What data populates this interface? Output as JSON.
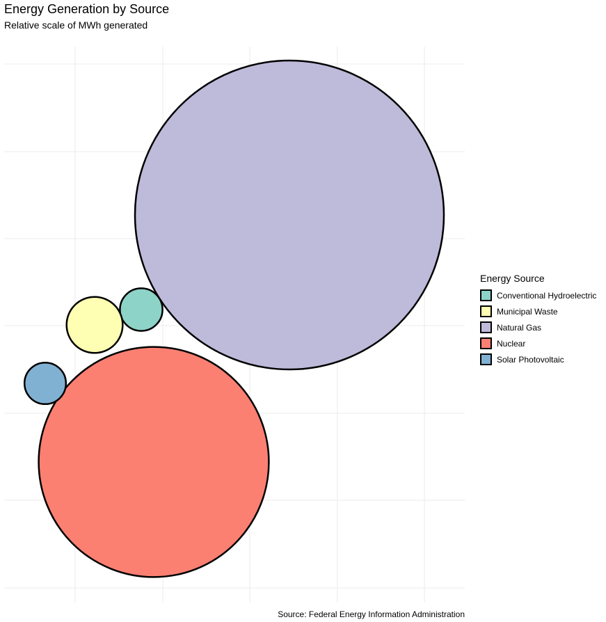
{
  "chart_data": {
    "type": "bubble",
    "title": "Energy Generation by Source",
    "subtitle": "Relative scale of MWh generated",
    "caption": "Source: Federal Energy Information Administration",
    "legend_title": "Energy Source",
    "legend_position": "right",
    "axes_visible": false,
    "grid": true,
    "categories": [
      "Conventional Hydroelectric",
      "Municipal Waste",
      "Natural Gas",
      "Nuclear",
      "Solar Photovoltaic"
    ],
    "relative_size": [
      1.9,
      3.3,
      100,
      55.5,
      1.8
    ],
    "colors": [
      "#8DD3C7",
      "#FFFFB3",
      "#BEBADA",
      "#FB8072",
      "#80B1D3"
    ]
  }
}
